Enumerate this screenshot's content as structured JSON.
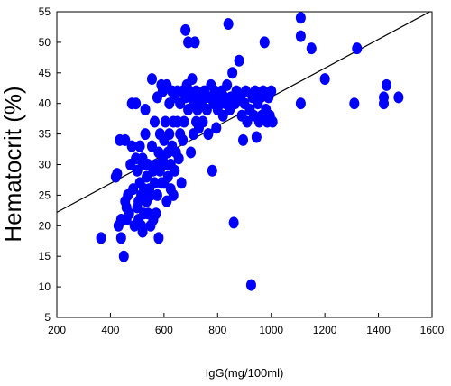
{
  "chart_data": {
    "type": "scatter",
    "title": "",
    "xlabel": "IgG(mg/100ml)",
    "ylabel": "Hematocrit (%)",
    "xlim": [
      200,
      1600
    ],
    "ylim": [
      5,
      55
    ],
    "x_ticks": [
      "200",
      "400",
      "600",
      "800",
      "1000",
      "1200",
      "1400",
      "1600"
    ],
    "y_ticks": [
      "5",
      "10",
      "15",
      "20",
      "25",
      "30",
      "35",
      "40",
      "45",
      "50",
      "55"
    ],
    "grid": false,
    "legend": "none",
    "marker_color": "#0000ff",
    "trendline": {
      "x": [
        200,
        1600
      ],
      "y": [
        22.2,
        55.2
      ],
      "color": "#000000"
    },
    "points": [
      [
        365,
        18
      ],
      [
        420,
        28
      ],
      [
        425,
        28.5
      ],
      [
        430,
        20
      ],
      [
        435,
        34
      ],
      [
        440,
        18
      ],
      [
        440,
        21
      ],
      [
        450,
        15
      ],
      [
        455,
        34
      ],
      [
        455,
        24
      ],
      [
        460,
        23
      ],
      [
        460,
        21
      ],
      [
        465,
        25
      ],
      [
        470,
        22
      ],
      [
        475,
        30
      ],
      [
        480,
        40
      ],
      [
        480,
        33
      ],
      [
        485,
        26
      ],
      [
        490,
        20
      ],
      [
        495,
        40
      ],
      [
        495,
        31
      ],
      [
        500,
        23
      ],
      [
        500,
        29
      ],
      [
        505,
        21
      ],
      [
        505,
        24
      ],
      [
        510,
        27
      ],
      [
        510,
        33
      ],
      [
        515,
        25
      ],
      [
        515,
        20
      ],
      [
        520,
        19
      ],
      [
        520,
        31
      ],
      [
        520,
        30
      ],
      [
        525,
        22
      ],
      [
        525,
        26
      ],
      [
        530,
        39
      ],
      [
        530,
        35
      ],
      [
        535,
        28
      ],
      [
        535,
        24
      ],
      [
        540,
        30
      ],
      [
        540,
        22
      ],
      [
        545,
        26
      ],
      [
        550,
        20
      ],
      [
        550,
        25
      ],
      [
        555,
        44
      ],
      [
        555,
        33
      ],
      [
        560,
        21
      ],
      [
        560,
        29
      ],
      [
        565,
        27
      ],
      [
        565,
        37
      ],
      [
        570,
        30
      ],
      [
        570,
        22
      ],
      [
        575,
        41
      ],
      [
        575,
        25
      ],
      [
        580,
        32
      ],
      [
        580,
        18
      ],
      [
        585,
        35
      ],
      [
        585,
        29
      ],
      [
        590,
        27
      ],
      [
        590,
        43
      ],
      [
        595,
        42
      ],
      [
        595,
        31
      ],
      [
        600,
        34
      ],
      [
        600,
        27
      ],
      [
        605,
        37
      ],
      [
        605,
        30
      ],
      [
        610,
        24
      ],
      [
        610,
        43
      ],
      [
        615,
        32
      ],
      [
        615,
        28
      ],
      [
        620,
        40
      ],
      [
        620,
        35
      ],
      [
        625,
        26
      ],
      [
        625,
        30
      ],
      [
        630,
        42
      ],
      [
        630,
        33
      ],
      [
        635,
        37
      ],
      [
        635,
        25
      ],
      [
        640,
        29
      ],
      [
        640,
        41
      ],
      [
        645,
        32
      ],
      [
        650,
        42
      ],
      [
        650,
        37
      ],
      [
        655,
        31
      ],
      [
        660,
        40
      ],
      [
        660,
        35
      ],
      [
        665,
        27
      ],
      [
        670,
        42
      ],
      [
        670,
        34
      ],
      [
        675,
        37
      ],
      [
        680,
        41
      ],
      [
        680,
        52
      ],
      [
        685,
        43
      ],
      [
        690,
        50
      ],
      [
        690,
        39
      ],
      [
        695,
        42
      ],
      [
        700,
        41
      ],
      [
        700,
        32
      ],
      [
        705,
        44
      ],
      [
        710,
        40
      ],
      [
        710,
        35
      ],
      [
        715,
        50
      ],
      [
        720,
        37
      ],
      [
        720,
        42
      ],
      [
        725,
        39
      ],
      [
        730,
        36
      ],
      [
        735,
        41
      ],
      [
        740,
        40
      ],
      [
        745,
        37
      ],
      [
        750,
        42
      ],
      [
        755,
        41
      ],
      [
        760,
        39
      ],
      [
        765,
        35
      ],
      [
        770,
        41
      ],
      [
        775,
        43
      ],
      [
        780,
        29
      ],
      [
        785,
        40
      ],
      [
        790,
        42
      ],
      [
        795,
        36
      ],
      [
        800,
        39
      ],
      [
        805,
        41
      ],
      [
        810,
        40
      ],
      [
        815,
        42
      ],
      [
        820,
        38
      ],
      [
        825,
        41
      ],
      [
        830,
        40
      ],
      [
        835,
        43
      ],
      [
        840,
        53
      ],
      [
        845,
        39
      ],
      [
        850,
        41
      ],
      [
        855,
        45
      ],
      [
        860,
        20.5
      ],
      [
        865,
        40
      ],
      [
        870,
        42
      ],
      [
        880,
        47
      ],
      [
        885,
        41
      ],
      [
        890,
        38
      ],
      [
        895,
        34
      ],
      [
        900,
        40
      ],
      [
        905,
        42
      ],
      [
        910,
        37
      ],
      [
        920,
        39
      ],
      [
        925,
        10.3
      ],
      [
        930,
        41
      ],
      [
        935,
        38
      ],
      [
        940,
        42
      ],
      [
        945,
        34.5
      ],
      [
        950,
        40
      ],
      [
        955,
        37
      ],
      [
        960,
        41
      ],
      [
        965,
        38
      ],
      [
        970,
        42
      ],
      [
        975,
        50
      ],
      [
        980,
        39
      ],
      [
        985,
        37
      ],
      [
        990,
        41
      ],
      [
        995,
        38
      ],
      [
        1000,
        42
      ],
      [
        1005,
        37
      ],
      [
        1110,
        54
      ],
      [
        1110,
        51
      ],
      [
        1110,
        40
      ],
      [
        1150,
        49
      ],
      [
        1200,
        44
      ],
      [
        1310,
        40
      ],
      [
        1320,
        49
      ],
      [
        1420,
        41
      ],
      [
        1420,
        40
      ],
      [
        1430,
        43
      ],
      [
        1475,
        41
      ]
    ]
  }
}
